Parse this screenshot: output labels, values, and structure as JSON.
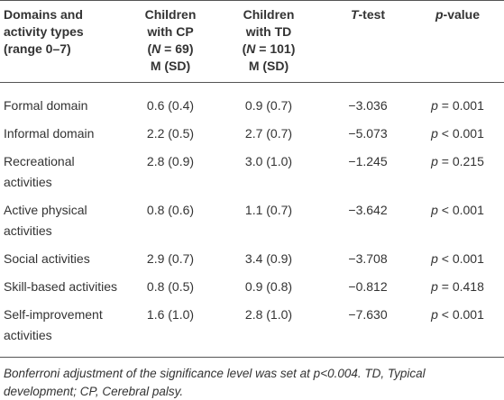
{
  "table": {
    "header": [
      [
        [
          "Domains and"
        ],
        [
          "activity types"
        ],
        [
          "(range 0–7)"
        ]
      ],
      [
        [
          "Children"
        ],
        [
          "with CP"
        ],
        [
          "(",
          "N",
          " = 69)"
        ],
        [
          "M (SD)"
        ]
      ],
      [
        [
          "Children"
        ],
        [
          "with TD"
        ],
        [
          "(",
          "N",
          " = 101)"
        ],
        [
          "M (SD)"
        ]
      ],
      [
        [
          "T",
          "-test"
        ]
      ],
      [
        [
          "p",
          "-value"
        ]
      ]
    ],
    "rows": [
      [
        "Formal domain",
        "0.6 (0.4)",
        "0.9 (0.7)",
        "−3.036",
        [
          "p",
          " = 0.001"
        ]
      ],
      [
        "Informal domain",
        "2.2 (0.5)",
        "2.7 (0.7)",
        "−5.073",
        [
          "p",
          " < 0.001"
        ]
      ],
      [
        "Recreational activities",
        "2.8 (0.9)",
        "3.0 (1.0)",
        "−1.245",
        [
          "p",
          " = 0.215"
        ]
      ],
      [
        "Active physical activities",
        "0.8 (0.6)",
        "1.1 (0.7)",
        "−3.642",
        [
          "p",
          " < 0.001"
        ]
      ],
      [
        "Social activities",
        "2.9 (0.7)",
        "3.4 (0.9)",
        "−3.708",
        [
          "p",
          " < 0.001"
        ]
      ],
      [
        "Skill-based activities",
        "0.8 (0.5)",
        "0.9 (0.8)",
        "−0.812",
        [
          "p",
          " = 0.418"
        ]
      ],
      [
        "Self-improvement activities",
        "1.6 (1.0)",
        "2.8 (1.0)",
        "−7.630",
        [
          "p",
          " < 0.001"
        ]
      ]
    ],
    "footnote": "Bonferroni adjustment of the significance level was set at p<0.004. TD, Typical development; CP, Cerebral palsy."
  }
}
